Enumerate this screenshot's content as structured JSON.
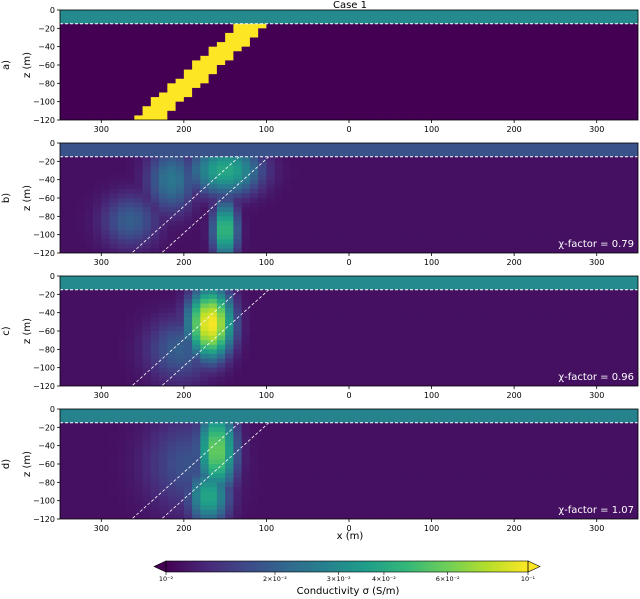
{
  "chart_data": {
    "type": "heatmap",
    "title": "Case 1",
    "xlabel": "x (m)",
    "ylabel": "z (m)",
    "xlim": [
      -350,
      350
    ],
    "ylim": [
      -120,
      0
    ],
    "x_ticks": [
      -300,
      -200,
      -100,
      0,
      100,
      200,
      300
    ],
    "x_tick_labels": [
      "300",
      "200",
      "100",
      "0",
      "100",
      "200",
      "300"
    ],
    "y_ticks": [
      0,
      -20,
      -40,
      -60,
      -80,
      -100,
      -120
    ],
    "y_tick_labels": [
      "0",
      "−20",
      "−40",
      "−60",
      "−80",
      "−100",
      "−120"
    ],
    "overburden_depth": -15,
    "colorbar": {
      "label": "Conductivity σ (S/m)",
      "scale": "log",
      "range": [
        0.01,
        0.1
      ],
      "ticks": [
        0.01,
        0.02,
        0.03,
        0.04,
        0.06,
        0.1
      ],
      "tick_labels": [
        "10⁻²",
        "2×10⁻²",
        "3×10⁻²",
        "4×10⁻²",
        "6×10⁻²",
        "10⁻¹"
      ],
      "colors": [
        "#440154",
        "#482878",
        "#3e4989",
        "#31688e",
        "#26828e",
        "#1f9e89",
        "#35b779",
        "#6ece58",
        "#b5de2b",
        "#fde725"
      ]
    },
    "panels": [
      {
        "label": "a)",
        "kind": "true-model",
        "annotation": "",
        "background": 0.01,
        "overburden": 0.03,
        "dike": {
          "top_x": -115,
          "top_z": -15,
          "bottom_x": -245,
          "bottom_z": -120,
          "value": 0.1
        }
      },
      {
        "label": "b)",
        "kind": "inversion",
        "annotation": "χ-factor = 0.79",
        "background": 0.011,
        "overburden": 0.018,
        "blobs": [
          {
            "x": -150,
            "z": -30,
            "sx": 35,
            "sz": 22,
            "value": 0.04
          },
          {
            "x": -150,
            "z": -95,
            "sx": 12,
            "sz": 25,
            "value": 0.05
          },
          {
            "x": -215,
            "z": -40,
            "sx": 25,
            "sz": 30,
            "value": 0.025
          },
          {
            "x": -265,
            "z": -85,
            "sx": 30,
            "sz": 25,
            "value": 0.02
          }
        ]
      },
      {
        "label": "c)",
        "kind": "inversion",
        "annotation": "χ-factor = 0.96",
        "background": 0.011,
        "overburden": 0.03,
        "blobs": [
          {
            "x": -168,
            "z": -52,
            "sx": 20,
            "sz": 28,
            "value": 0.1
          },
          {
            "x": -205,
            "z": -80,
            "sx": 35,
            "sz": 30,
            "value": 0.02
          }
        ]
      },
      {
        "label": "d)",
        "kind": "inversion",
        "annotation": "χ-factor = 1.07",
        "background": 0.011,
        "overburden": 0.028,
        "blobs": [
          {
            "x": -160,
            "z": -45,
            "sx": 18,
            "sz": 35,
            "value": 0.06
          },
          {
            "x": -170,
            "z": -95,
            "sx": 20,
            "sz": 25,
            "value": 0.04
          },
          {
            "x": -195,
            "z": -60,
            "sx": 45,
            "sz": 45,
            "value": 0.018
          }
        ]
      }
    ]
  }
}
